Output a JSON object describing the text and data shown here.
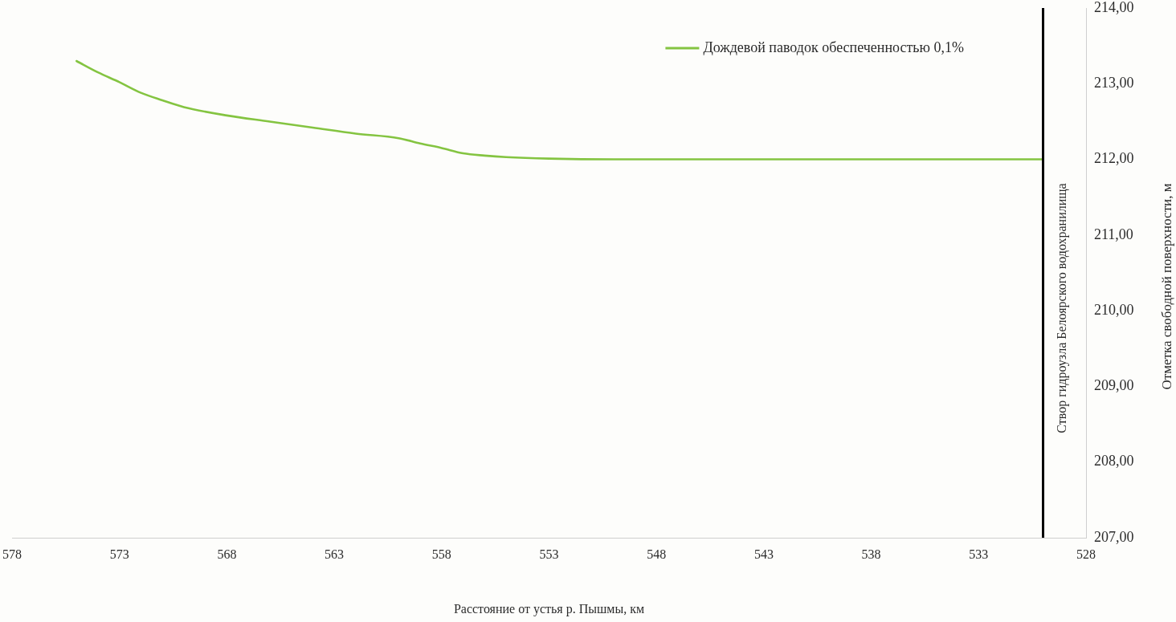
{
  "chart_data": {
    "type": "line",
    "xlabel": "Расстояние от устья р. Пышмы, км",
    "ylabel": "Отметка свободной поверхности, м",
    "x": [
      575,
      574,
      573,
      572,
      571,
      570,
      568,
      566,
      564,
      562,
      560,
      559,
      558,
      557,
      556,
      555,
      553,
      550,
      545,
      540,
      535,
      530
    ],
    "series": [
      {
        "name": "Дождевой паводок обеспеченностью 0,1%",
        "color": "#84c441",
        "values": [
          213.3,
          213.15,
          213.02,
          212.88,
          212.78,
          212.69,
          212.58,
          212.5,
          212.42,
          212.34,
          212.28,
          212.21,
          212.15,
          212.08,
          212.05,
          212.03,
          212.01,
          212.0,
          212.0,
          212.0,
          212.0,
          212.0
        ]
      }
    ],
    "xlim": [
      578,
      528
    ],
    "xticks": [
      578,
      573,
      568,
      563,
      558,
      553,
      548,
      543,
      538,
      533,
      528
    ],
    "ylim": [
      207,
      214
    ],
    "yticks": [
      {
        "value": 207,
        "label": "207,00"
      },
      {
        "value": 208,
        "label": "208,00"
      },
      {
        "value": 209,
        "label": "209,00"
      },
      {
        "value": 210,
        "label": "210,00"
      },
      {
        "value": 211,
        "label": "211,00"
      },
      {
        "value": 212,
        "label": "212,00"
      },
      {
        "value": 213,
        "label": "213,00"
      },
      {
        "value": 214,
        "label": "214,00"
      }
    ],
    "ref_lines": [
      {
        "axis": "x",
        "value": 530,
        "label": "Створ гидроузла Белоярского водохранилища",
        "color": "#000000"
      }
    ],
    "legend": "top right",
    "marker": "none",
    "line_style": "solid"
  }
}
